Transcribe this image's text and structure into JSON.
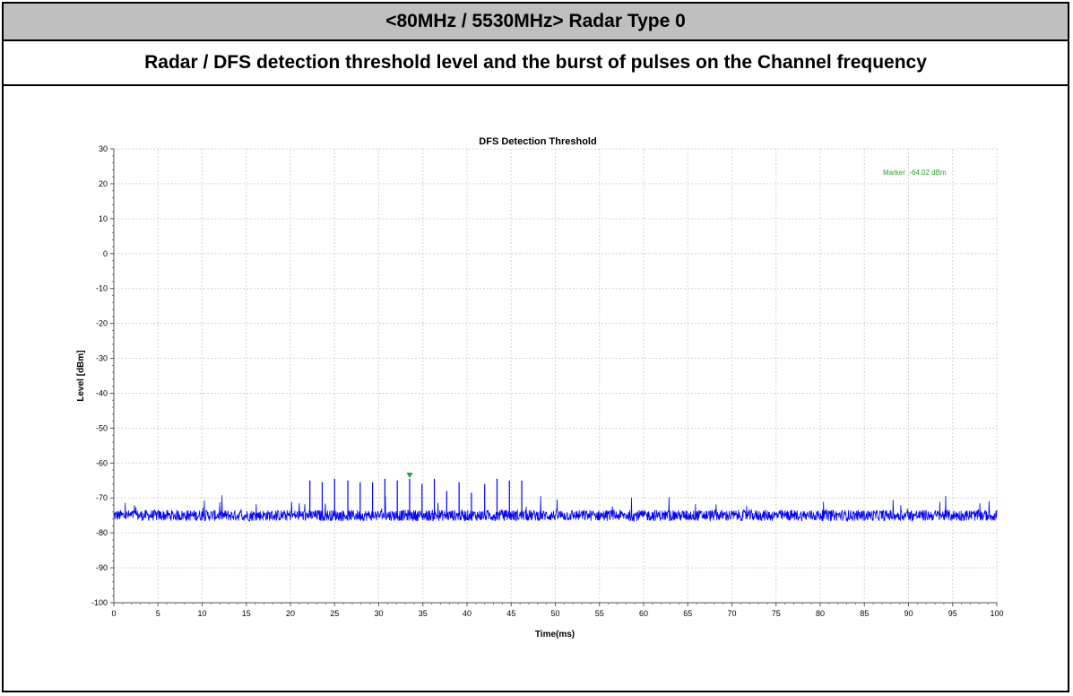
{
  "header": {
    "title": "<80MHz / 5530MHz> Radar Type 0",
    "subtitle": "Radar / DFS detection threshold level and the burst of pulses on the Channel frequency"
  },
  "chart_data": {
    "type": "line",
    "title": "DFS Detection Threshold",
    "xlabel": "Time(ms)",
    "ylabel": "Level [dBm]",
    "xlim": [
      0,
      100
    ],
    "ylim": [
      -100,
      30
    ],
    "xticks": [
      0,
      5,
      10,
      15,
      20,
      25,
      30,
      35,
      40,
      45,
      50,
      55,
      60,
      65,
      70,
      75,
      80,
      85,
      90,
      95,
      100
    ],
    "yticks": [
      30,
      20,
      10,
      0,
      -10,
      -20,
      -30,
      -40,
      -50,
      -60,
      -70,
      -80,
      -90,
      -100
    ],
    "grid": true,
    "series": [
      {
        "color": "#0000ff",
        "noise_floor_dbm": -75,
        "pulses": [
          {
            "x": 22.2,
            "y": -65
          },
          {
            "x": 23.6,
            "y": -65.5
          },
          {
            "x": 25.0,
            "y": -64.5
          },
          {
            "x": 26.5,
            "y": -65
          },
          {
            "x": 27.9,
            "y": -65.5
          },
          {
            "x": 29.3,
            "y": -65.5
          },
          {
            "x": 30.7,
            "y": -64.5
          },
          {
            "x": 32.1,
            "y": -65
          },
          {
            "x": 33.5,
            "y": -64.5
          },
          {
            "x": 34.9,
            "y": -66
          },
          {
            "x": 36.3,
            "y": -64.5
          },
          {
            "x": 37.7,
            "y": -68
          },
          {
            "x": 39.1,
            "y": -65.5
          },
          {
            "x": 40.5,
            "y": -68.5
          },
          {
            "x": 42.0,
            "y": -66
          },
          {
            "x": 43.4,
            "y": -64.5
          },
          {
            "x": 44.8,
            "y": -65
          },
          {
            "x": 46.2,
            "y": -65
          }
        ]
      }
    ],
    "marker": {
      "label": "Marker :-64.02 dBm",
      "x": 33.5,
      "y": -64.02,
      "color": "#2e9b2e"
    }
  }
}
